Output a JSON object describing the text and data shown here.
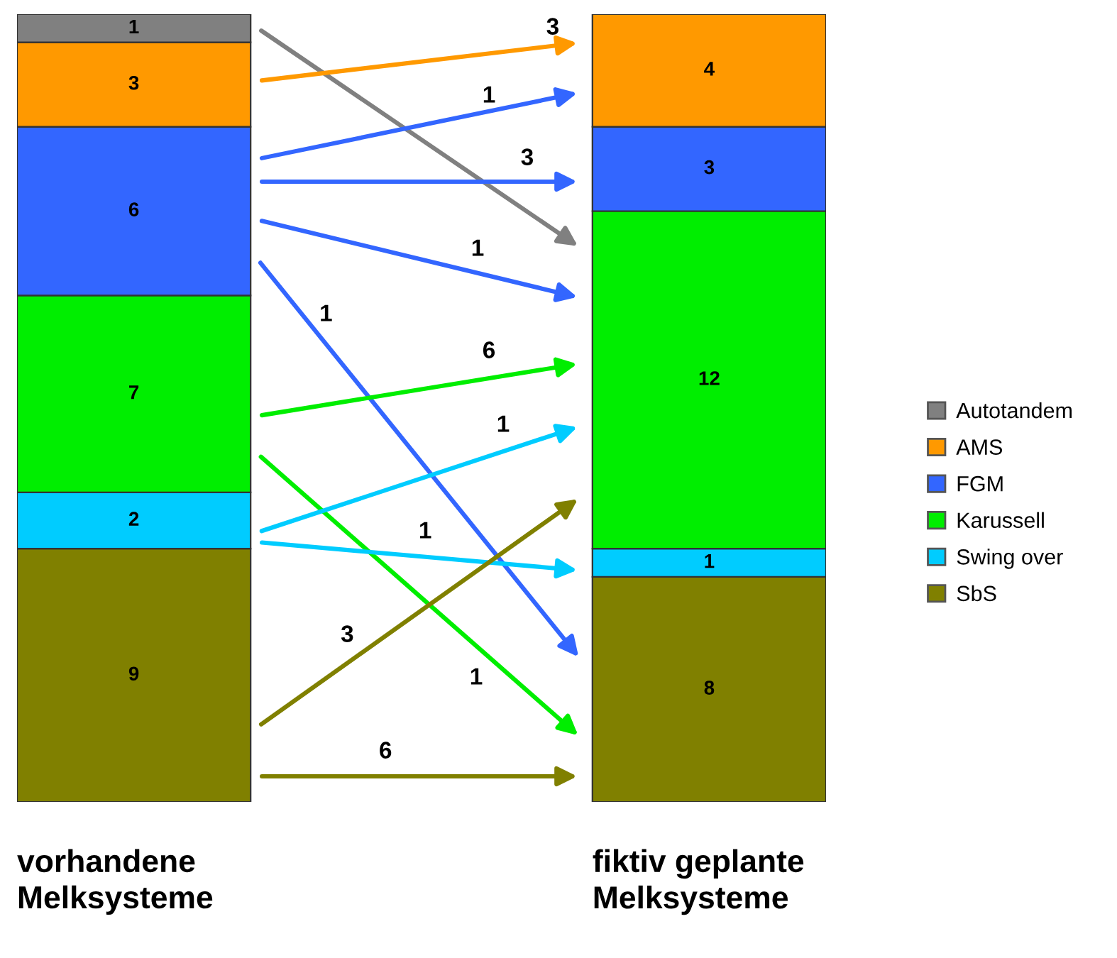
{
  "chart_data": {
    "type": "bar",
    "stacked": true,
    "categories": [
      "vorhandene\nMelksysteme",
      "fiktiv geplante\nMelksysteme"
    ],
    "series": [
      {
        "name": "SbS",
        "color": "#808000",
        "values": [
          9,
          8
        ],
        "value_labels": [
          "9",
          "8"
        ]
      },
      {
        "name": "Swing over",
        "color": "#00ccff",
        "values": [
          2,
          1
        ],
        "value_labels": [
          "2",
          "1"
        ]
      },
      {
        "name": "Karussell",
        "color": "#00ee00",
        "values": [
          7,
          12
        ],
        "value_labels": [
          "7",
          "12"
        ]
      },
      {
        "name": "FGM",
        "color": "#3366ff",
        "values": [
          6,
          3
        ],
        "value_labels": [
          "6",
          "3"
        ]
      },
      {
        "name": "AMS",
        "color": "#ff9900",
        "values": [
          3,
          4
        ],
        "value_labels": [
          "3",
          "4"
        ]
      },
      {
        "name": "Autotandem",
        "color": "#808080",
        "values": [
          1,
          0
        ],
        "value_labels": [
          "1",
          null
        ]
      }
    ],
    "annotations": [
      "3",
      "1",
      "3",
      "1",
      "1",
      "6",
      "1",
      "1",
      "1",
      "3",
      "6"
    ],
    "legend": "right"
  }
}
